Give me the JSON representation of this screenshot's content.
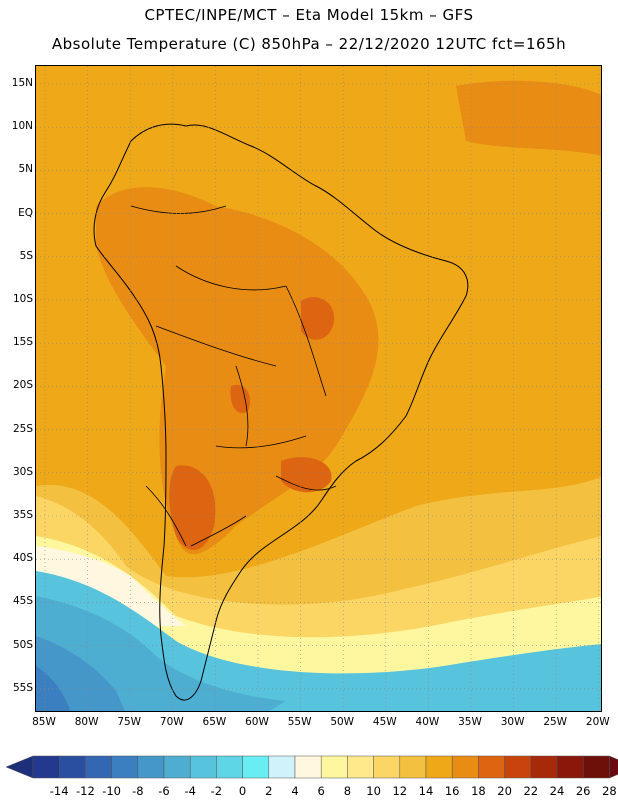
{
  "header": {
    "line1": "CPTEC/INPE/MCT –  Eta Model 15km – GFS",
    "line2": "Absolute Temperature (C) 850hPa – 22/12/2020 12UTC fct=165h"
  },
  "axes": {
    "lat_labels": [
      "15N",
      "10N",
      "5N",
      "EQ",
      "5S",
      "10S",
      "15S",
      "20S",
      "25S",
      "30S",
      "35S",
      "40S",
      "45S",
      "50S",
      "55S"
    ],
    "lon_labels": [
      "85W",
      "80W",
      "75W",
      "70W",
      "65W",
      "60W",
      "55W",
      "50W",
      "45W",
      "40W",
      "35W",
      "30W",
      "25W",
      "20W"
    ]
  },
  "colorbar": {
    "labels": [
      "-14",
      "-12",
      "-10",
      "-8",
      "-6",
      "-4",
      "-2",
      "0",
      "2",
      "4",
      "6",
      "8",
      "10",
      "12",
      "14",
      "16",
      "18",
      "20",
      "22",
      "24",
      "26",
      "28"
    ],
    "colors": [
      "#23388f",
      "#2a4fa0",
      "#3367b2",
      "#3b7fc0",
      "#4697c9",
      "#4eaed2",
      "#57c3dc",
      "#5ed6e6",
      "#68eef2",
      "#d0f2fa",
      "#fff7e0",
      "#fff7a0",
      "#ffe98a",
      "#fbd664",
      "#f3c040",
      "#eea818",
      "#e88c14",
      "#dd6410",
      "#c8440c",
      "#a8280a",
      "#8a180a",
      "#6e100a"
    ],
    "left_arrow_color": "#1e2f7a",
    "right_arrow_color": "#6a0a12"
  },
  "map_colors": {
    "background": "#eea818",
    "warm": "#e88c14",
    "hot": "#dd6410",
    "mild": "#f3c040",
    "cool": "#fbd664",
    "cooler": "#fff7a0",
    "pale": "#fff7e0",
    "cold1": "#57c3dc",
    "cold2": "#4eaed2",
    "cold3": "#4697c9",
    "cold4": "#3b7fc0"
  }
}
